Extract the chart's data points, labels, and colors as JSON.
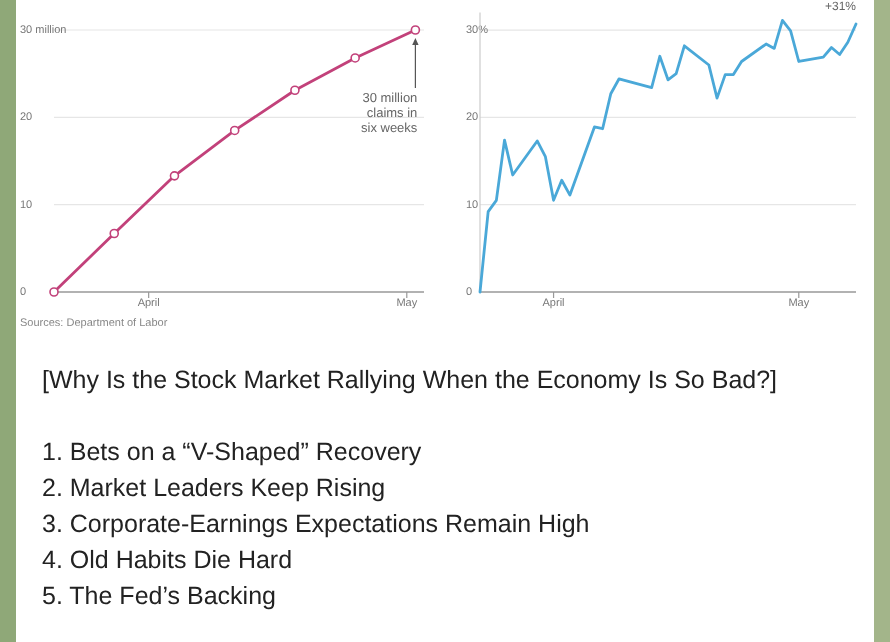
{
  "chart_data": [
    {
      "type": "line",
      "x": [
        "--03-21",
        "--03-28",
        "--04-04",
        "--04-11",
        "--04-18",
        "--04-25",
        "--05-02"
      ],
      "series": [
        {
          "color": "#c2417a",
          "values": [
            0,
            6.7,
            13.3,
            18.5,
            23.1,
            26.8,
            30
          ]
        }
      ],
      "xlim": [
        "--03-21",
        "--05-03"
      ],
      "ylim": [
        0,
        30
      ],
      "xticks": [
        {
          "value": "--04-01",
          "label": "April"
        },
        {
          "value": "--05-01",
          "label": "May"
        }
      ],
      "yticks": [
        0,
        10,
        20,
        {
          "value": 30,
          "label": "30 million"
        }
      ],
      "grid": "y",
      "marker": "circle",
      "annotations": [
        {
          "text": "30 million claims in six weeks",
          "x": "--05-02",
          "y": 30
        },
        "Sources: Department of Labor"
      ]
    },
    {
      "type": "line",
      "x": [
        "--03-23",
        "--03-24",
        "--03-25",
        "--03-26",
        "--03-27",
        "--03-30",
        "--03-31",
        "--04-01",
        "--04-02",
        "--04-03",
        "--04-06",
        "--04-07",
        "--04-08",
        "--04-09",
        "--04-13",
        "--04-14",
        "--04-15",
        "--04-16",
        "--04-17",
        "--04-20",
        "--04-21",
        "--04-22",
        "--04-23",
        "--04-24",
        "--04-27",
        "--04-28",
        "--04-29",
        "--04-30",
        "--05-01",
        "--05-04",
        "--05-05",
        "--05-06",
        "--05-07",
        "--05-08"
      ],
      "series": [
        {
          "color": "#4aa8d8",
          "values": [
            0,
            9.2,
            10.5,
            17.4,
            13.4,
            17.3,
            15.5,
            10.5,
            12.8,
            11.1,
            18.9,
            18.7,
            22.7,
            24.4,
            23.4,
            27,
            24.3,
            25,
            28.2,
            26,
            22.2,
            24.9,
            24.9,
            26.4,
            28.4,
            27.9,
            31.1,
            29.9,
            26.4,
            26.9,
            28,
            27.2,
            28.6,
            30.7
          ]
        }
      ],
      "xlim": [
        "--03-23",
        "--05-08"
      ],
      "ylim": [
        0,
        32
      ],
      "xticks": [
        {
          "value": "--04-01",
          "label": "April"
        },
        {
          "value": "--05-01",
          "label": "May"
        }
      ],
      "yticks": [
        0,
        10,
        20,
        {
          "value": 30,
          "label": "30%"
        }
      ],
      "grid": "y",
      "annotations": [
        {
          "text": "+31%",
          "x": "--05-08",
          "y": 30.7
        }
      ]
    },
    {
      "type": "other",
      "title": "[Why Is the Stock Market Rallying When the Economy Is So Bad?]",
      "annotations": [
        "1. Bets on a “V-Shaped” Recovery",
        "2. Market Leaders Keep Rising",
        "3. Corporate-Earnings Expectations Remain High",
        "4. Old Habits Die Hard",
        "5. The Fed’s Backing"
      ]
    }
  ]
}
